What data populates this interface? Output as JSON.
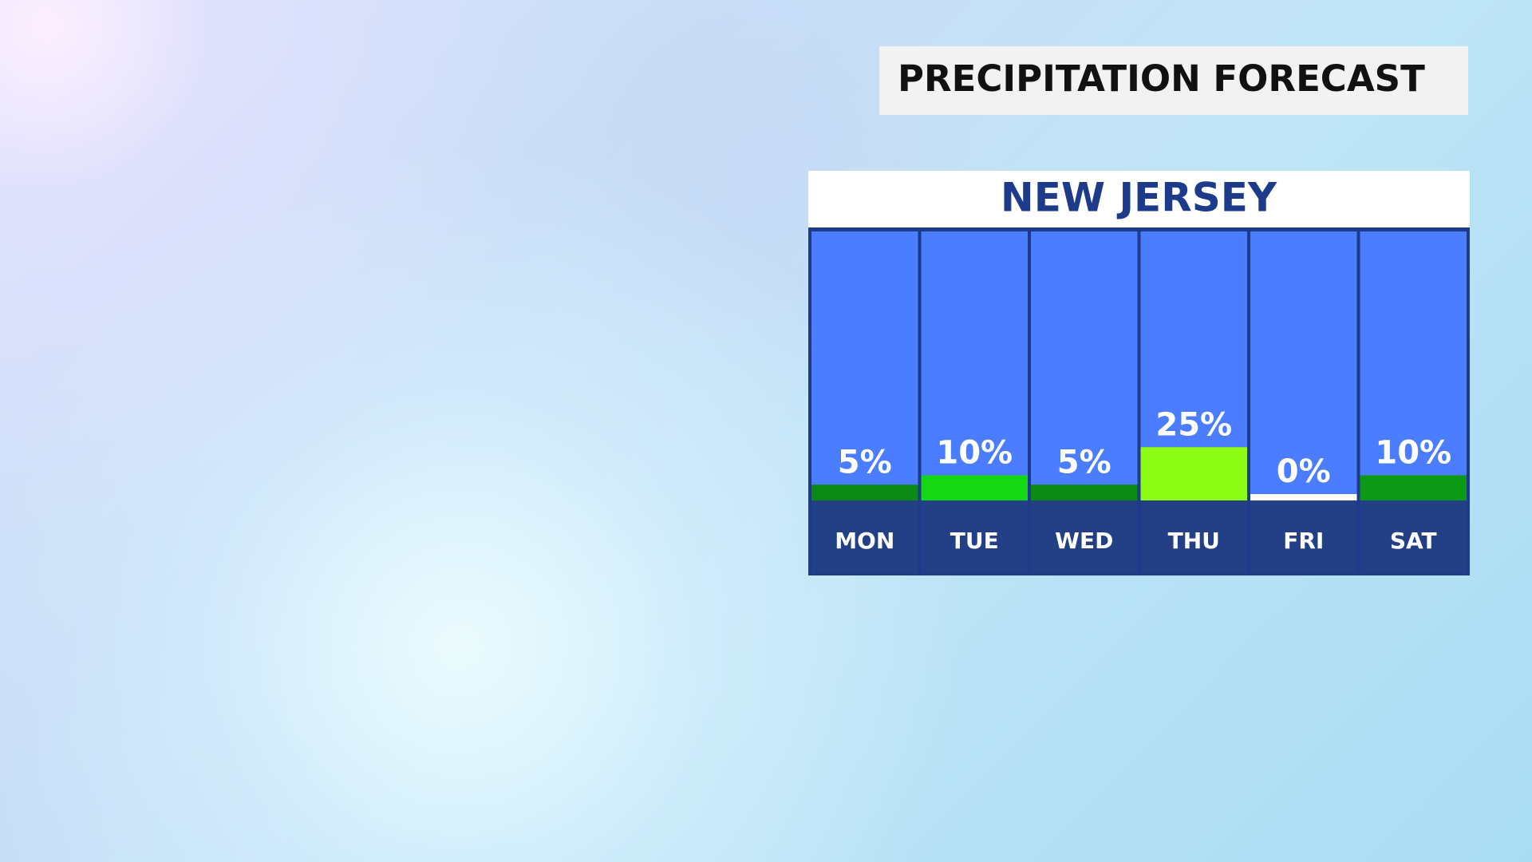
{
  "chart_data": {
    "type": "bar",
    "title": "PRECIPITATION FORECAST",
    "subtitle": "NEW JERSEY",
    "categories": [
      "MON",
      "TUE",
      "WED",
      "THU",
      "FRI",
      "SAT"
    ],
    "values": [
      5,
      10,
      5,
      25,
      0,
      10
    ],
    "value_labels": [
      "5%",
      "10%",
      "5%",
      "25%",
      "0%",
      "10%"
    ],
    "colors": [
      "#0b8a14",
      "#14d814",
      "#0b8a14",
      "#8cfc14",
      "#ffffff",
      "#0c9a16"
    ]
  }
}
